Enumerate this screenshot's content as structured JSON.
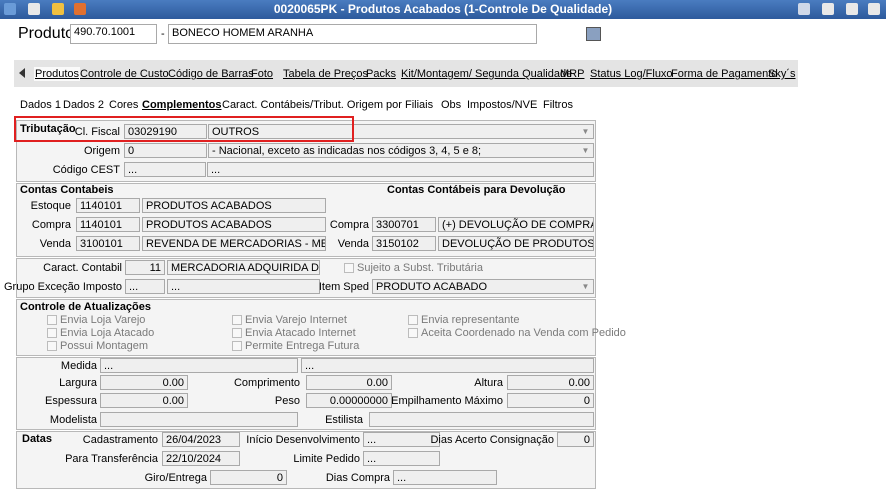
{
  "window": {
    "title": "0020065PK - Produtos Acabados (1-Controle De Qualidade)"
  },
  "product": {
    "label": "Produto",
    "code": "490.70.1001",
    "separator": "-",
    "name": "BONECO HOMEM ARANHA"
  },
  "main_tabs": [
    "Produtos",
    "Controle de Custo",
    "Código de Barras",
    "Foto",
    "Tabela de Preços",
    "Packs",
    "Kit/Montagem/ Segunda Qualidade",
    "MRP",
    "Status Log/Fluxo",
    "Forma de Pagamento",
    "Sky´s"
  ],
  "sub_tabs": [
    "Dados 1",
    "Dados 2",
    "Cores",
    "Complementos",
    "Caract. Contábeis/Tribut. Origem por Filiais",
    "Obs",
    "Impostos/NVE",
    "Filtros"
  ],
  "tributacao": {
    "title": "Tributação",
    "cl_fiscal_label": "Cl. Fiscal",
    "cl_fiscal_code": "03029190",
    "cl_fiscal_desc": "OUTROS",
    "origem_label": "Origem",
    "origem_code": "0",
    "origem_desc": "- Nacional, exceto as indicadas nos códigos 3, 4, 5 e 8;",
    "cest_label": "Código CEST",
    "cest_code": "...",
    "cest_desc": "..."
  },
  "contas": {
    "title": "Contas Contabeis",
    "devolucao_title": "Contas Contábeis para Devolução",
    "rows": [
      {
        "label": "Estoque",
        "code": "1140101",
        "desc": "PRODUTOS ACABADOS"
      },
      {
        "label": "Compra",
        "code": "1140101",
        "desc": "PRODUTOS ACABADOS"
      },
      {
        "label": "Venda",
        "code": "3100101",
        "desc": "REVENDA DE MERCADORIAS - MERC. NACI"
      }
    ],
    "devolucao_rows": [
      {
        "label": "Compra",
        "code": "3300701",
        "desc": "(+) DEVOLUÇÃO DE COMPRA P/REVI"
      },
      {
        "label": "Venda",
        "code": "3150102",
        "desc": "DEVOLUÇÃO DE PRODUTOS"
      }
    ]
  },
  "caract": {
    "contabil_label": "Caract. Contabil",
    "contabil_code": "11",
    "contabil_desc": "MERCADORIA ADQUIRIDA DE TERC",
    "subst_label": "Sujeito a Subst. Tributária",
    "grupo_label": "Grupo Exceção Imposto",
    "grupo_code": "...",
    "grupo_desc": "...",
    "item_sped_label": "Item Sped",
    "item_sped": "PRODUTO ACABADO"
  },
  "controle": {
    "title": "Controle de Atualizações",
    "options": [
      "Envia Loja Varejo",
      "Envia Loja Atacado",
      "Possui Montagem",
      "Envia Varejo Internet",
      "Envia Atacado Internet",
      "Permite Entrega Futura",
      "Envia representante",
      "Aceita Coordenado na Venda com Pedido"
    ]
  },
  "medidas": {
    "medida_label": "Medida",
    "medida_1": "...",
    "medida_2": "...",
    "largura_label": "Largura",
    "largura": "0.00",
    "comprimento_label": "Comprimento",
    "comprimento": "0.00",
    "altura_label": "Altura",
    "altura": "0.00",
    "espessura_label": "Espessura",
    "espessura": "0.00",
    "peso_label": "Peso",
    "peso": "0.00000000",
    "empilhamento_label": "Empilhamento Máximo",
    "empilhamento": "0",
    "modelista_label": "Modelista",
    "estilista_label": "Estilista"
  },
  "datas": {
    "title": "Datas",
    "cadastramento_label": "Cadastramento",
    "cadastramento": "26/04/2023",
    "inicio_label": "Início Desenvolvimento",
    "inicio": "...",
    "dias_acerto_label": "Dias Acerto Consignação",
    "dias_acerto": "0",
    "transferencia_label": "Para Transferência",
    "transferencia": "22/10/2024",
    "limite_label": "Limite Pedido",
    "limite": "...",
    "giro_label": "Giro/Entrega",
    "giro": "0",
    "dias_compra_label": "Dias Compra",
    "dias_compra": "..."
  }
}
